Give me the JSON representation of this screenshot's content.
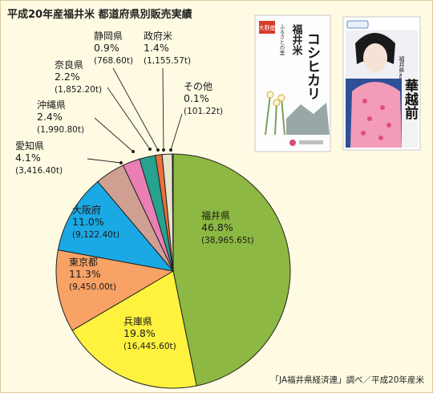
{
  "title": "平成20年産福井米 都道府県別販売実績",
  "source": "「JA福井県経済連」調べ／平成20年産米",
  "products": {
    "left_package": {
      "brand": "大野産",
      "name": "コシヒカリ",
      "subtitle": "福井米",
      "tagline": "ふるさとの里"
    },
    "right_package": {
      "name": "華越前",
      "subtitle": "福井県産"
    }
  },
  "chart_data": {
    "type": "pie",
    "unit": "t",
    "slices": [
      {
        "name": "福井県",
        "percent_label": "46.8%",
        "tonnage_label": "(38,965.65t)",
        "value": 38965.65,
        "color": "#8db843"
      },
      {
        "name": "兵庫県",
        "percent_label": "19.8%",
        "tonnage_label": "(16,445.60t)",
        "value": 16445.6,
        "color": "#fff23f"
      },
      {
        "name": "東京都",
        "percent_label": "11.3%",
        "tonnage_label": "(9,450.00t)",
        "value": 9450.0,
        "color": "#f8a266"
      },
      {
        "name": "大阪府",
        "percent_label": "11.0%",
        "tonnage_label": "(9,122.40t)",
        "value": 9122.4,
        "color": "#1aa9e4"
      },
      {
        "name": "愛知県",
        "percent_label": "4.1%",
        "tonnage_label": "(3,416.40t)",
        "value": 3416.4,
        "color": "#cfa091"
      },
      {
        "name": "沖縄県",
        "percent_label": "2.4%",
        "tonnage_label": "(1,990.80t)",
        "value": 1990.8,
        "color": "#e97fb4"
      },
      {
        "name": "奈良県",
        "percent_label": "2.2%",
        "tonnage_label": "(1,852.20t)",
        "value": 1852.2,
        "color": "#26a28e"
      },
      {
        "name": "静岡県",
        "percent_label": "0.9%",
        "tonnage_label": "(768.60t)",
        "value": 768.6,
        "color": "#ee6f3c"
      },
      {
        "name": "政府米",
        "percent_label": "1.4%",
        "tonnage_label": "(1,155.57t)",
        "value": 1155.57,
        "color": "#e8e4cc"
      },
      {
        "name": "その他",
        "percent_label": "0.1%",
        "tonnage_label": "(101.22t)",
        "value": 101.22,
        "color": "#3b4fa0"
      }
    ]
  }
}
